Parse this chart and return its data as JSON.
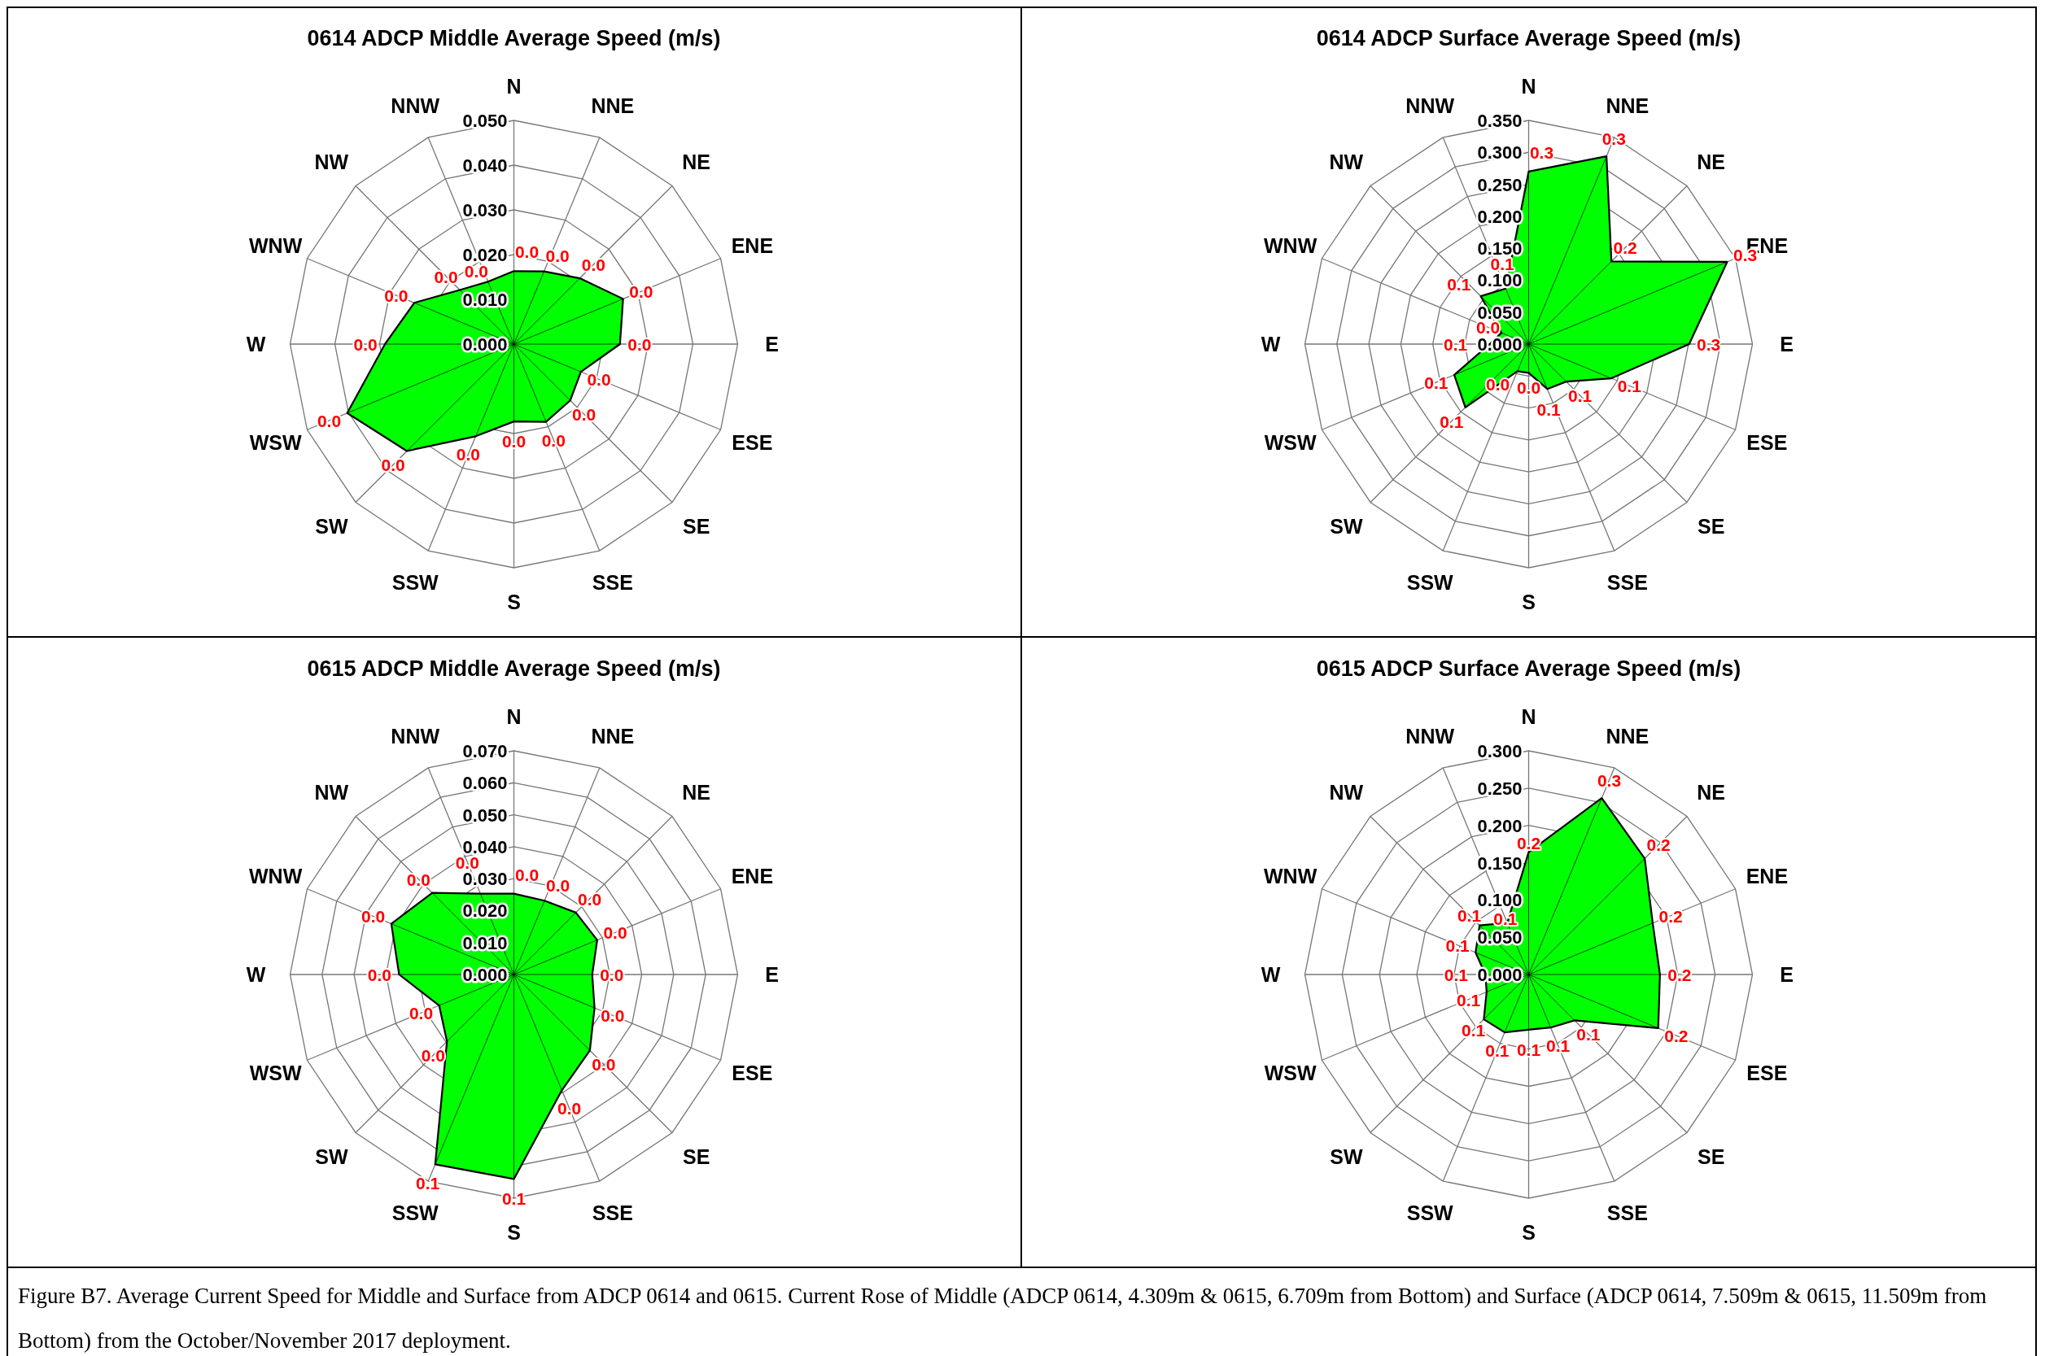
{
  "chart_data": [
    {
      "type": "radar",
      "title": "0614 ADCP Middle Average Speed (m/s)",
      "categories": [
        "N",
        "NNE",
        "NE",
        "ENE",
        "E",
        "ESE",
        "SE",
        "SSE",
        "S",
        "SSW",
        "SW",
        "WSW",
        "W",
        "WNW",
        "NW",
        "NNW"
      ],
      "ylim": [
        0,
        0.05
      ],
      "yticks": [
        {
          "value": 0,
          "label": "0.000"
        },
        {
          "value": 0.01,
          "label": "0.010"
        },
        {
          "value": 0.02,
          "label": "0.020"
        },
        {
          "value": 0.03,
          "label": "0.030"
        },
        {
          "value": 0.04,
          "label": "0.040"
        },
        {
          "value": 0.05,
          "label": "0.050"
        }
      ],
      "grid": true,
      "series": [
        {
          "color": "#00ff00",
          "values": [
            0.0163,
            0.0176,
            0.0208,
            0.0264,
            0.0237,
            0.0162,
            0.0178,
            0.0188,
            0.0173,
            0.0223,
            0.0338,
            0.0403,
            0.0288,
            0.0241,
            0.0171,
            0.0151
          ],
          "value_labels": [
            "0.0",
            "0.0",
            "0.0",
            "0.0",
            "0.0",
            "0.0",
            "0.0",
            "0.0",
            "0.0",
            "0.0",
            "0.0",
            "0.0",
            "0.0",
            "0.0",
            "0.0",
            "0.0"
          ]
        }
      ]
    },
    {
      "type": "radar",
      "title": "0614 ADCP Surface Average Speed (m/s)",
      "categories": [
        "N",
        "NNE",
        "NE",
        "ENE",
        "E",
        "ESE",
        "SE",
        "SSE",
        "S",
        "SSW",
        "SW",
        "WSW",
        "W",
        "WNW",
        "NW",
        "NNW"
      ],
      "ylim": [
        0,
        0.35
      ],
      "yticks": [
        {
          "value": 0,
          "label": "0.000"
        },
        {
          "value": 0.05,
          "label": "0.050"
        },
        {
          "value": 0.1,
          "label": "0.100"
        },
        {
          "value": 0.15,
          "label": "0.150"
        },
        {
          "value": 0.2,
          "label": "0.200"
        },
        {
          "value": 0.25,
          "label": "0.250"
        },
        {
          "value": 0.3,
          "label": "0.300"
        },
        {
          "value": 0.35,
          "label": "0.350"
        }
      ],
      "grid": true,
      "series": [
        {
          "color": "#00ff00",
          "values": [
            0.27,
            0.318,
            0.183,
            0.336,
            0.251,
            0.14,
            0.083,
            0.076,
            0.045,
            0.046,
            0.14,
            0.126,
            0.061,
            0.046,
            0.106,
            0.094
          ],
          "value_labels": [
            "0.3",
            "0.3",
            "0.2",
            "0.3",
            "0.3",
            "0.1",
            "0.1",
            "0.1",
            "0.0",
            "0.0",
            "0.1",
            "0.1",
            "0.1",
            "0.0",
            "0.1",
            "0.1"
          ]
        }
      ]
    },
    {
      "type": "radar",
      "title": "0615 ADCP Middle Average Speed (m/s)",
      "categories": [
        "N",
        "NNE",
        "NE",
        "ENE",
        "E",
        "ESE",
        "SE",
        "SSE",
        "S",
        "SSW",
        "SW",
        "WSW",
        "W",
        "WNW",
        "NW",
        "NNW"
      ],
      "ylim": [
        0,
        0.07
      ],
      "yticks": [
        {
          "value": 0,
          "label": "0.000"
        },
        {
          "value": 0.01,
          "label": "0.010"
        },
        {
          "value": 0.02,
          "label": "0.020"
        },
        {
          "value": 0.03,
          "label": "0.030"
        },
        {
          "value": 0.04,
          "label": "0.040"
        },
        {
          "value": 0.05,
          "label": "0.050"
        },
        {
          "value": 0.06,
          "label": "0.060"
        },
        {
          "value": 0.07,
          "label": "0.070"
        }
      ],
      "grid": true,
      "series": [
        {
          "color": "#00ff00",
          "values": [
            0.0253,
            0.025,
            0.0274,
            0.0282,
            0.0245,
            0.0273,
            0.0336,
            0.0392,
            0.064,
            0.0643,
            0.0296,
            0.0253,
            0.0359,
            0.0415,
            0.0361,
            0.0274
          ],
          "value_labels": [
            "0.0",
            "0.0",
            "0.0",
            "0.0",
            "0.0",
            "0.0",
            "0.0",
            "0.0",
            "0.1",
            "0.1",
            "0.0",
            "0.0",
            "0.0",
            "0.0",
            "0.0",
            "0.0"
          ]
        }
      ]
    },
    {
      "type": "radar",
      "title": "0615 ADCP Surface Average Speed (m/s)",
      "categories": [
        "N",
        "NNE",
        "NE",
        "ENE",
        "E",
        "ESE",
        "SE",
        "SSE",
        "S",
        "SSW",
        "SW",
        "WSW",
        "W",
        "WNW",
        "NW",
        "NNW"
      ],
      "ylim": [
        0,
        0.3
      ],
      "yticks": [
        {
          "value": 0,
          "label": "0.000"
        },
        {
          "value": 0.05,
          "label": "0.050"
        },
        {
          "value": 0.1,
          "label": "0.100"
        },
        {
          "value": 0.15,
          "label": "0.150"
        },
        {
          "value": 0.2,
          "label": "0.200"
        },
        {
          "value": 0.25,
          "label": "0.250"
        },
        {
          "value": 0.3,
          "label": "0.300"
        }
      ],
      "grid": true,
      "series": [
        {
          "color": "#00ff00",
          "values": [
            0.164,
            0.256,
            0.22,
            0.18,
            0.176,
            0.188,
            0.087,
            0.077,
            0.074,
            0.084,
            0.085,
            0.061,
            0.058,
            0.077,
            0.093,
            0.075
          ],
          "value_labels": [
            "0.2",
            "0.3",
            "0.2",
            "0.2",
            "0.2",
            "0.2",
            "0.1",
            "0.1",
            "0.1",
            "0.1",
            "0.1",
            "0.1",
            "0.1",
            "0.1",
            "0.1",
            "0.1"
          ]
        }
      ],
      "annotations": [
        "Figure B7. Average Current Speed for Middle and Surface from ADCP 0614 and 0615. Current Rose of Middle (ADCP 0614, 4.309m & 0615, 6.709m from Bottom) and Surface (ADCP 0614, 7.509m & 0615, 11.509m from Bottom) from the October/November 2017 deployment."
      ]
    }
  ]
}
